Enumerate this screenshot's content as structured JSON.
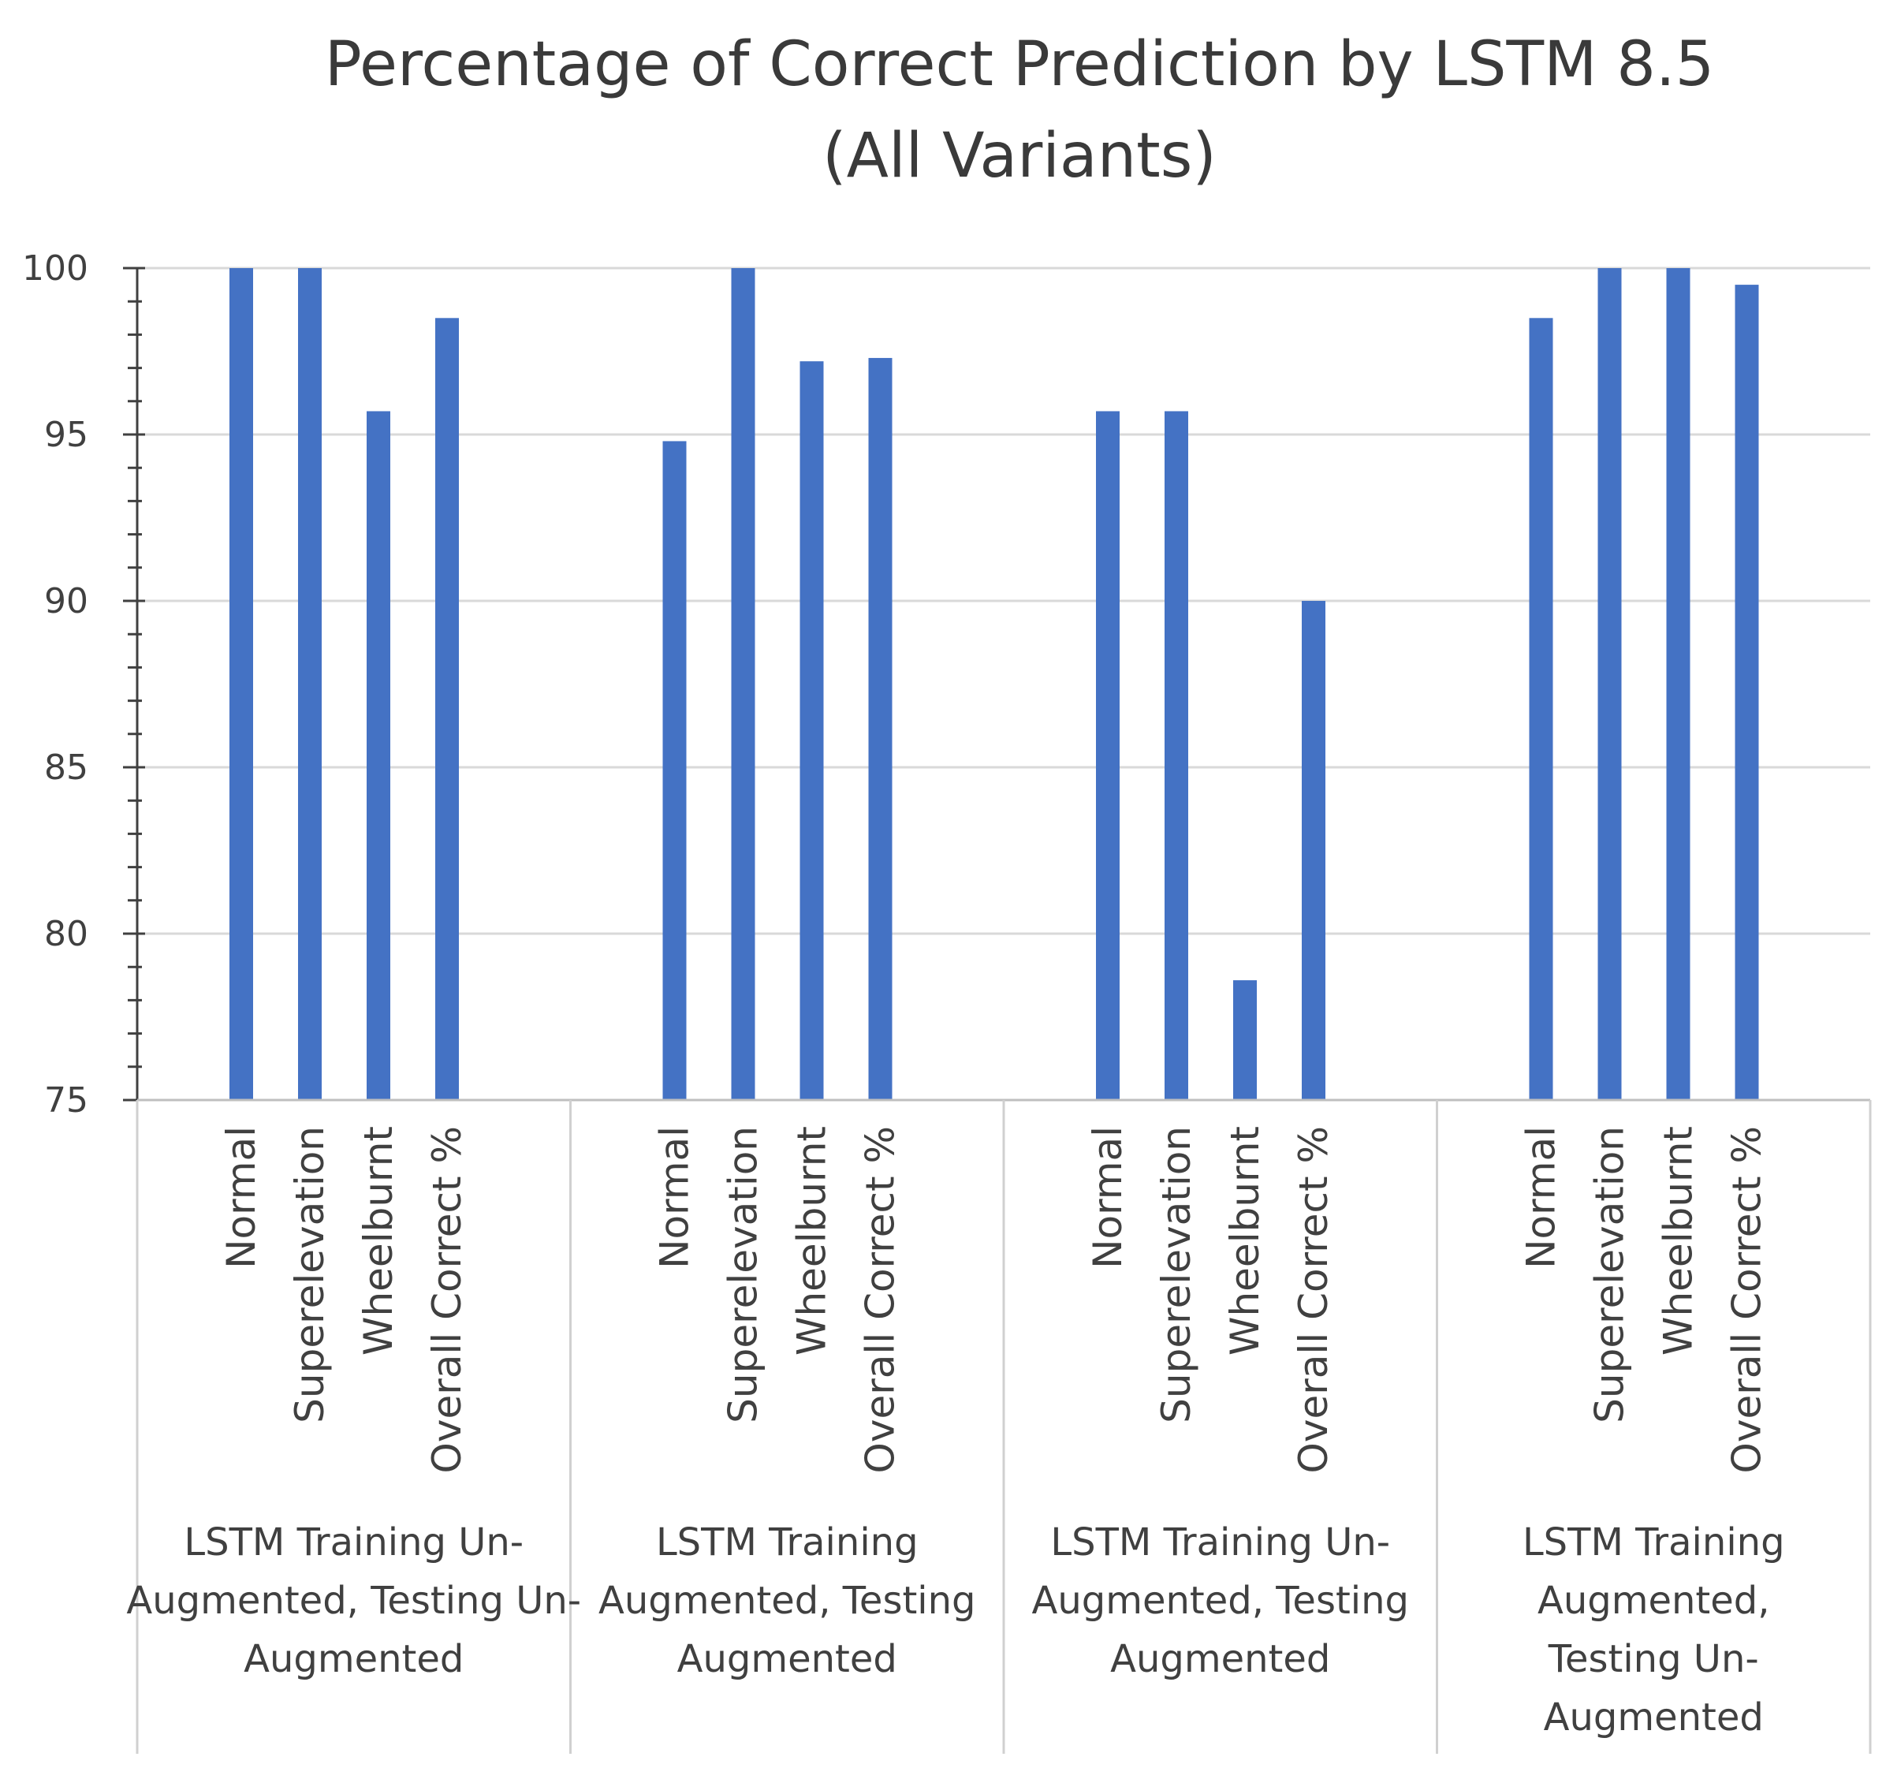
{
  "chart_data": {
    "type": "bar",
    "title_lines": [
      "Percentage of Correct Prediction by LSTM 8.5",
      "(All Variants)"
    ],
    "xlabel": "",
    "ylabel": "",
    "ylim": [
      75,
      100
    ],
    "yticks": [
      75,
      80,
      85,
      90,
      95,
      100
    ],
    "grid": true,
    "legend": "none",
    "bar_color": "#4472c4",
    "groups": [
      {
        "label_lines": [
          "LSTM Training Un-",
          "Augmented, Testing Un-",
          "Augmented"
        ],
        "categories": [
          "Normal",
          "Superelevation",
          "Wheelburnt",
          "Overall Correct %"
        ],
        "values": [
          100,
          100,
          95.7,
          98.5
        ]
      },
      {
        "label_lines": [
          "LSTM Training",
          "Augmented, Testing",
          "Augmented"
        ],
        "categories": [
          "Normal",
          "Superelevation",
          "Wheelburnt",
          "Overall Correct %"
        ],
        "values": [
          94.8,
          100,
          97.2,
          97.3
        ]
      },
      {
        "label_lines": [
          "LSTM Training Un-",
          "Augmented, Testing",
          "Augmented"
        ],
        "categories": [
          "Normal",
          "Superelevation",
          "Wheelburnt",
          "Overall Correct %"
        ],
        "values": [
          95.7,
          95.7,
          78.6,
          90
        ]
      },
      {
        "label_lines": [
          "LSTM Training",
          "Augmented,",
          "Testing Un-",
          "Augmented"
        ],
        "categories": [
          "Normal",
          "Superelevation",
          "Wheelburnt",
          "Overall Correct %"
        ],
        "values": [
          98.5,
          100,
          100,
          99.5
        ]
      }
    ]
  }
}
